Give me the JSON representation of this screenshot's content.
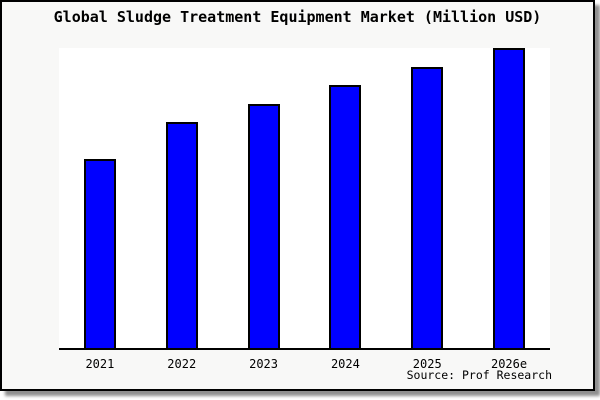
{
  "chart_data": {
    "type": "bar",
    "title": "Global Sludge Treatment Equipment Market (Million USD)",
    "categories": [
      "2021",
      "2022",
      "2023",
      "2024",
      "2025",
      "2026e"
    ],
    "values": [
      188,
      225,
      244,
      263,
      281,
      300
    ],
    "values_note": "Bars carry no numeric labels and there is no y-axis; values are relative bar heights read from the plot, on a scale where the full plot height equals 302.",
    "xlabel": "",
    "ylabel": "",
    "ylim": [
      0,
      302
    ],
    "grid": false,
    "legend": false
  },
  "source_credit": "Source: Prof Research",
  "colors": {
    "bar_fill": "#0000ff",
    "bar_border": "#000000",
    "frame_bg": "#f8f8f7",
    "plot_bg": "#ffffff",
    "axis_and_text": "#000000",
    "shadow": "#8f8f8f"
  }
}
